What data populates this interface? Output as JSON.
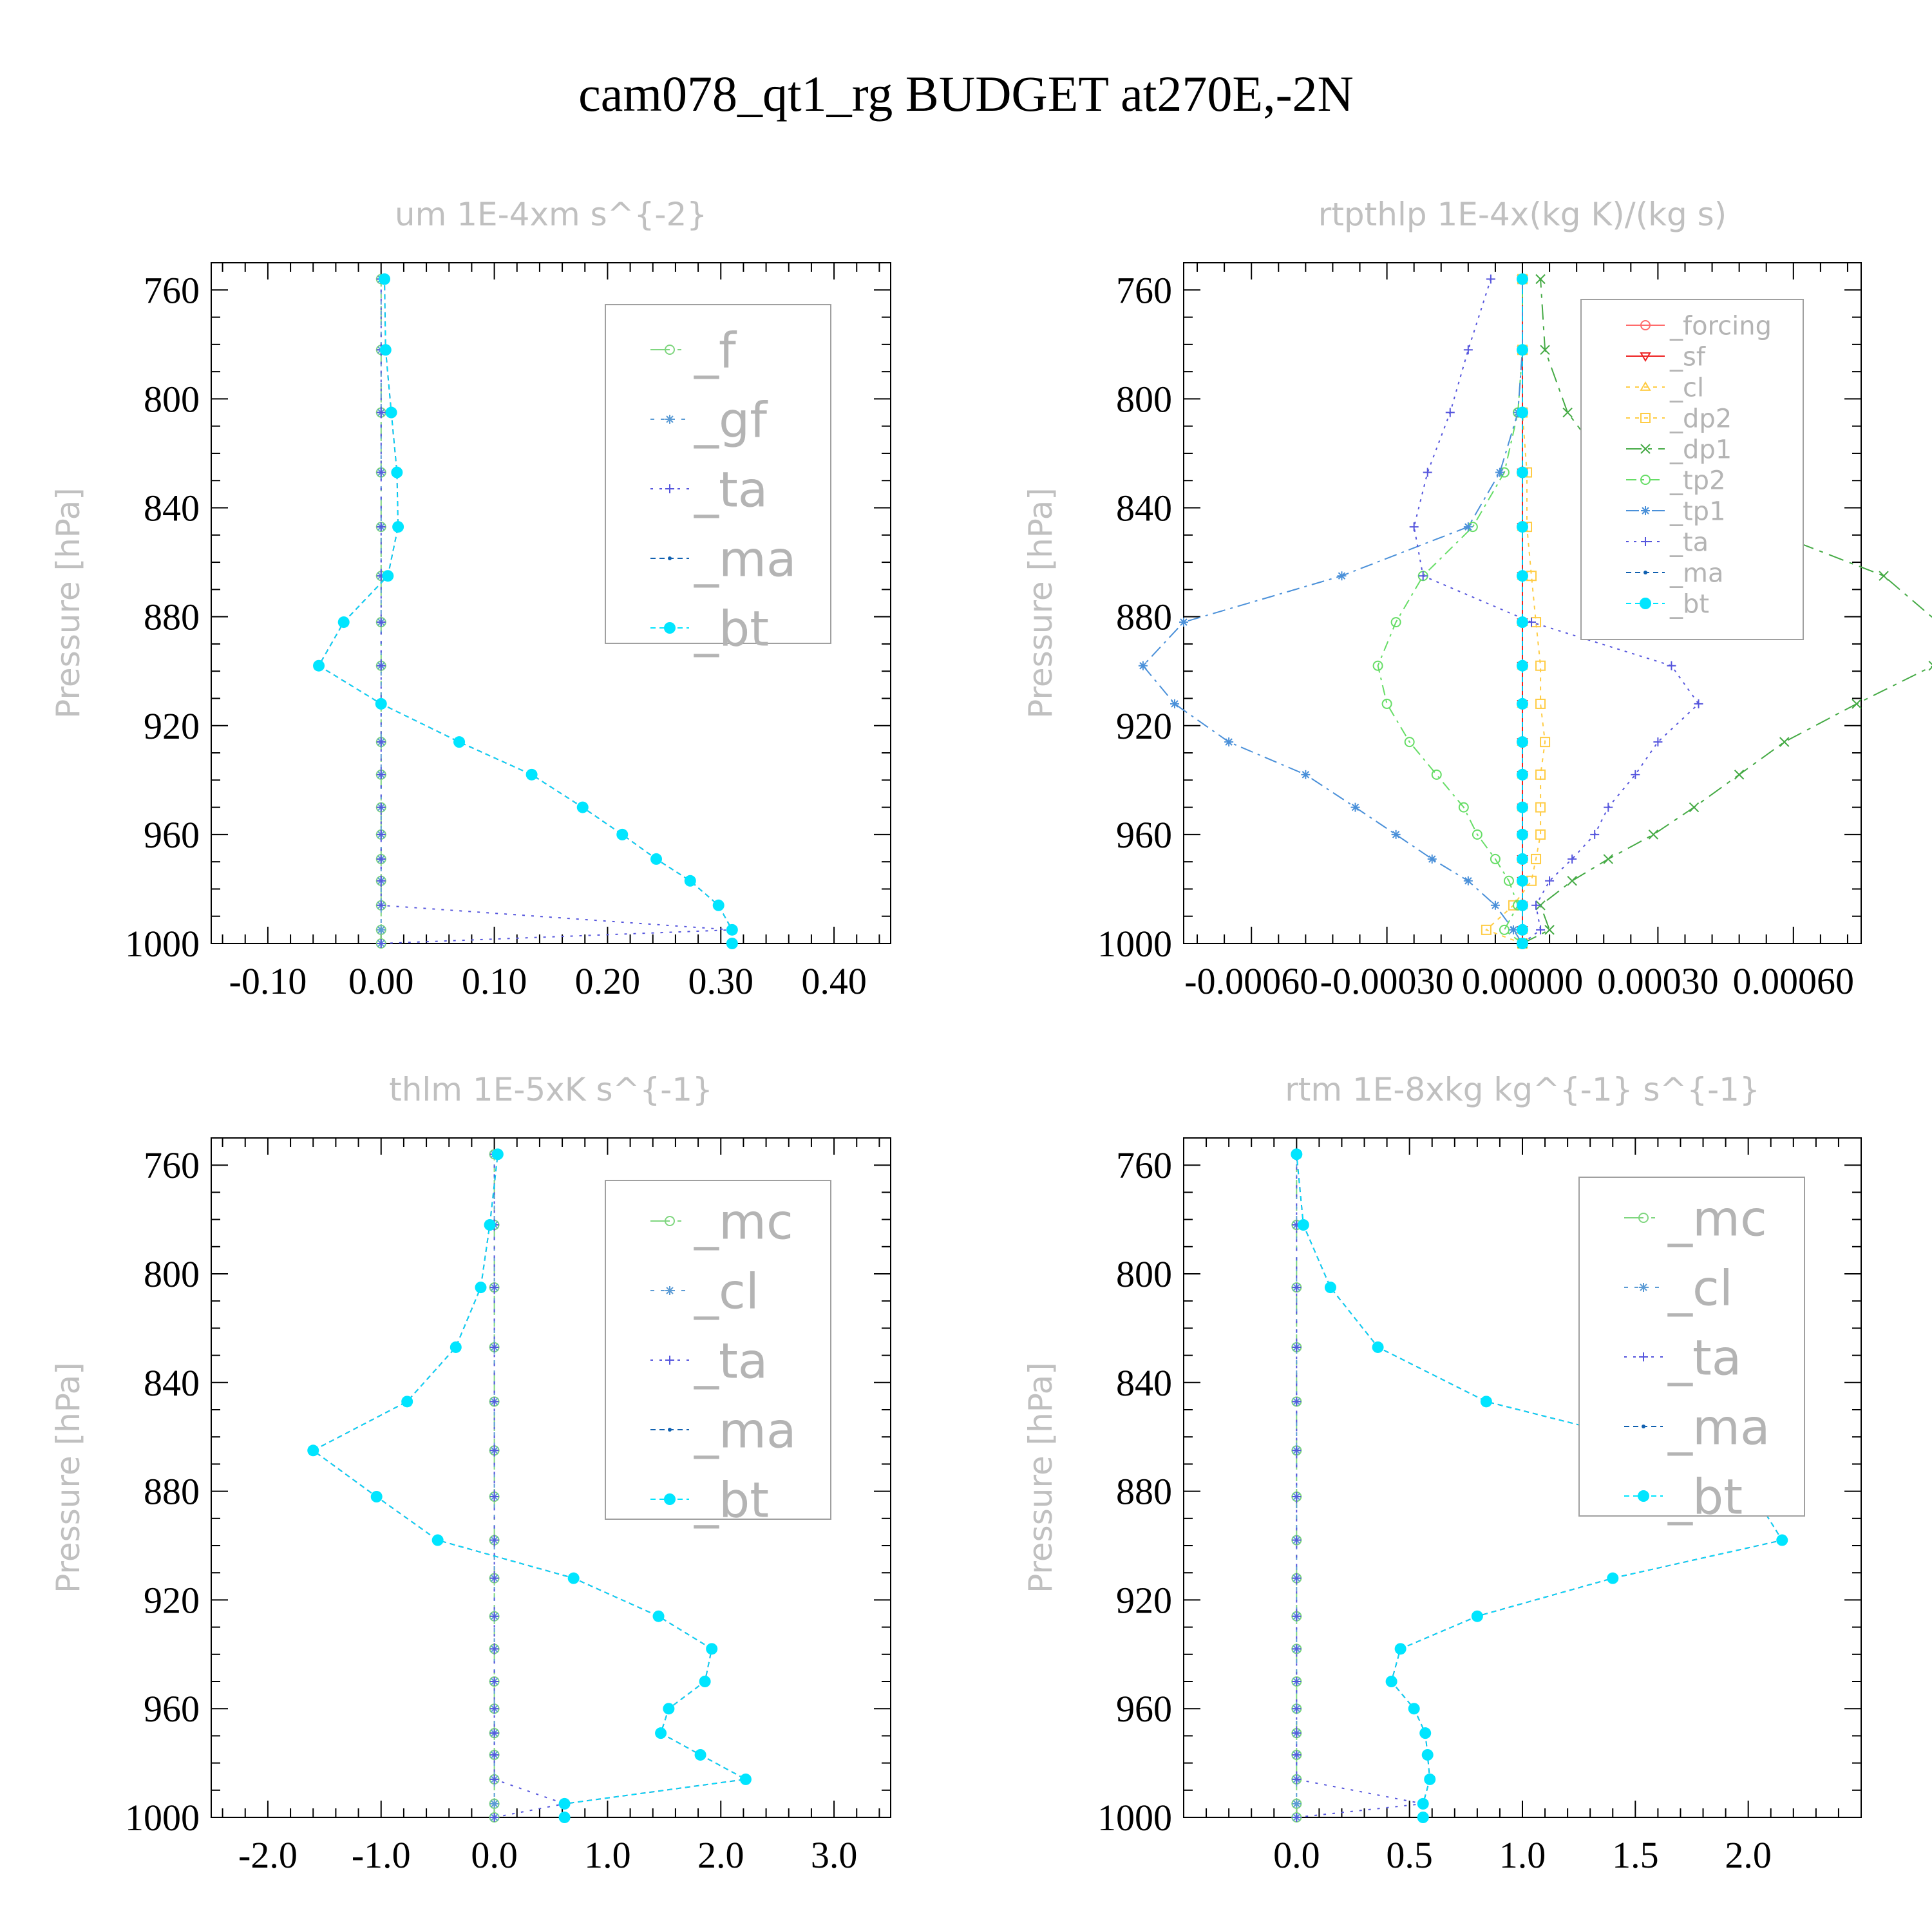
{
  "figure_title": "cam078_qt1_rg  BUDGET at270E,-2N",
  "colors": {
    "f": "#7fd67f",
    "mc": "#7fd67f",
    "gf": "#5b9bd5",
    "cl": "#5b9bd5",
    "ta": "#5555dd",
    "ma": "#1060b0",
    "bt": "#00e5ff",
    "forcing": "#ff6b6b",
    "sf": "#ee2222",
    "dp2": "#ffcc44",
    "dp1": "#44aa44",
    "tp2": "#66dd66",
    "tp1": "#4a90d9"
  },
  "chart_data": [
    {
      "type": "line",
      "title": "um  1E-4xm s^{-2}",
      "ylabel": "Pressure [hPa]",
      "xlim": [
        -0.15,
        0.45
      ],
      "ylim": [
        1000,
        750
      ],
      "xticks": [
        -0.1,
        0.0,
        0.1,
        0.2,
        0.3,
        0.4
      ],
      "xtick_labels": [
        "-0.10",
        "0.00",
        "0.10",
        "0.20",
        "0.30",
        "0.40"
      ],
      "yticks": [
        760,
        800,
        840,
        880,
        920,
        960,
        1000
      ],
      "ytick_labels": [
        "760",
        "800",
        "840",
        "880",
        "920",
        "960",
        "1000"
      ],
      "y": [
        1000,
        995,
        986,
        977,
        969,
        960,
        950,
        938,
        926,
        912,
        898,
        882,
        865,
        847,
        827,
        805,
        782,
        756
      ],
      "legend_position": "top-right",
      "legend_font": 76,
      "series": [
        {
          "name": "_f",
          "key": "f",
          "marker": "circle",
          "dash": "30,12,6,12",
          "values": [
            0,
            0,
            0,
            0,
            0,
            0,
            0,
            0,
            0,
            0,
            0,
            0,
            0,
            0,
            0,
            0,
            0,
            0
          ]
        },
        {
          "name": "_gf",
          "key": "gf",
          "marker": "star",
          "dash": "6,10",
          "values": [
            0,
            0,
            0,
            0,
            0,
            0,
            0,
            0,
            0,
            0,
            0,
            0,
            0,
            0,
            0,
            0,
            0,
            0
          ]
        },
        {
          "name": "_ta",
          "key": "ta",
          "marker": "plus",
          "dash": "4,10",
          "values": [
            0,
            0.31,
            0,
            0,
            0,
            0,
            0,
            0,
            0,
            0,
            0,
            0,
            0,
            0,
            0,
            0,
            0,
            0
          ]
        },
        {
          "name": "_ma",
          "key": "ma",
          "marker": "dot",
          "dash": "8,6",
          "values": [
            0.31,
            0.31,
            0.298,
            0.273,
            0.243,
            0.213,
            0.178,
            0.133,
            0.069,
            0,
            -0.055,
            -0.033,
            0.006,
            0.015,
            0.014,
            0.009,
            0.004,
            0.003
          ]
        },
        {
          "name": "_bt",
          "key": "bt",
          "marker": "bigdot",
          "dash": "8,6",
          "values": [
            0.31,
            0.31,
            0.298,
            0.273,
            0.243,
            0.213,
            0.178,
            0.133,
            0.069,
            0,
            -0.055,
            -0.033,
            0.006,
            0.015,
            0.014,
            0.009,
            0.004,
            0.003
          ]
        }
      ]
    },
    {
      "type": "line",
      "title": "rtpthlp  1E-4x(kg K)/(kg s)",
      "ylabel": "Pressure [hPa]",
      "xlim": [
        -0.00075,
        0.00075
      ],
      "ylim": [
        1000,
        750
      ],
      "xticks": [
        -0.0006,
        -0.0003,
        0.0,
        0.0003,
        0.0006
      ],
      "xtick_labels": [
        "-0.00060",
        "-0.00030",
        "0.00000",
        "0.00030",
        "0.00060"
      ],
      "yticks": [
        760,
        800,
        840,
        880,
        920,
        960,
        1000
      ],
      "ytick_labels": [
        "760",
        "800",
        "840",
        "880",
        "920",
        "960",
        "1000"
      ],
      "y": [
        1000,
        995,
        986,
        977,
        969,
        960,
        950,
        938,
        926,
        912,
        898,
        882,
        865,
        847,
        827,
        805,
        782,
        756
      ],
      "legend_position": "top-right",
      "legend_font": 40,
      "series": [
        {
          "name": "_forcing",
          "key": "forcing",
          "marker": "circle",
          "dash": "",
          "values": [
            0,
            0,
            0,
            0,
            0,
            0,
            0,
            0,
            0,
            0,
            0,
            0,
            0,
            0,
            0,
            0,
            0,
            0
          ]
        },
        {
          "name": "_sf",
          "key": "sf",
          "marker": "tri-down",
          "dash": "",
          "values": [
            0,
            0,
            0,
            0,
            0,
            0,
            0,
            0,
            0,
            0,
            0,
            0,
            0,
            0,
            0,
            0,
            0,
            0
          ]
        },
        {
          "name": "_cl",
          "key": "dp2",
          "marker": "tri-up",
          "dash": "6,8",
          "values": [
            0,
            0,
            0,
            0,
            0,
            0,
            0,
            0,
            0,
            0,
            0,
            0,
            0,
            0,
            0,
            0,
            0,
            0
          ]
        },
        {
          "name": "_dp2",
          "key": "dp2",
          "marker": "square",
          "dash": "6,8",
          "values": [
            0,
            -8e-05,
            -2e-05,
            2e-05,
            3e-05,
            4e-05,
            4e-05,
            4e-05,
            5e-05,
            4e-05,
            4e-05,
            3e-05,
            2e-05,
            1e-05,
            1e-05,
            0,
            0,
            0
          ]
        },
        {
          "name": "_dp1",
          "key": "dp1",
          "marker": "x",
          "dash": "24,10,6,10",
          "values": [
            0,
            6e-05,
            4e-05,
            0.00011,
            0.00019,
            0.00029,
            0.00038,
            0.00048,
            0.00058,
            0.00074,
            0.00091,
            0.00092,
            0.0008,
            0.00052,
            0.0002,
            0.0001,
            5e-05,
            4e-05
          ]
        },
        {
          "name": "_tp2",
          "key": "tp2",
          "marker": "circle",
          "dash": "16,8,4,8",
          "values": [
            0,
            -4e-05,
            -1e-05,
            -3e-05,
            -6e-05,
            -0.0001,
            -0.00013,
            -0.00019,
            -0.00025,
            -0.0003,
            -0.00032,
            -0.00028,
            -0.00022,
            -0.00011,
            -4e-05,
            -1e-05,
            0,
            0
          ]
        },
        {
          "name": "_tp1",
          "key": "tp1",
          "marker": "star",
          "dash": "20,8,4,8",
          "values": [
            0,
            -2e-05,
            -6e-05,
            -0.00012,
            -0.0002,
            -0.00028,
            -0.00037,
            -0.00048,
            -0.00065,
            -0.00077,
            -0.00084,
            -0.00075,
            -0.0004,
            -0.00012,
            -5e-05,
            -1e-05,
            0,
            0
          ]
        },
        {
          "name": "_ta",
          "key": "ta",
          "marker": "plus",
          "dash": "4,8",
          "values": [
            0,
            4e-05,
            3e-05,
            6e-05,
            0.00011,
            0.00016,
            0.00019,
            0.00025,
            0.0003,
            0.00039,
            0.00033,
            2e-05,
            -0.00022,
            -0.00024,
            -0.00021,
            -0.00016,
            -0.00012,
            -7e-05
          ]
        },
        {
          "name": "_ma",
          "key": "ma",
          "marker": "dot",
          "dash": "8,6",
          "values": [
            0,
            0,
            0,
            0,
            0,
            0,
            0,
            0,
            0,
            0,
            0,
            0,
            0,
            0,
            0,
            0,
            0,
            0
          ]
        },
        {
          "name": "_bt",
          "key": "bt",
          "marker": "bigdot",
          "dash": "8,6",
          "values": [
            0,
            0,
            0,
            0,
            0,
            0,
            0,
            0,
            0,
            0,
            0,
            0,
            0,
            0,
            0,
            0,
            0,
            0
          ]
        }
      ]
    },
    {
      "type": "line",
      "title": "thlm  1E-5xK s^{-1}",
      "ylabel": "Pressure [hPa]",
      "xlim": [
        -2.5,
        3.5
      ],
      "ylim": [
        1000,
        750
      ],
      "xticks": [
        -2,
        -1,
        0,
        1,
        2,
        3
      ],
      "xtick_labels": [
        "-2.0",
        "-1.0",
        "0.0",
        "1.0",
        "2.0",
        "3.0"
      ],
      "yticks": [
        760,
        800,
        840,
        880,
        920,
        960,
        1000
      ],
      "ytick_labels": [
        "760",
        "800",
        "840",
        "880",
        "920",
        "960",
        "1000"
      ],
      "y": [
        1000,
        995,
        986,
        977,
        969,
        960,
        950,
        938,
        926,
        912,
        898,
        882,
        865,
        847,
        827,
        805,
        782,
        756
      ],
      "legend_position": "top-right",
      "legend_font": 76,
      "series": [
        {
          "name": "_mc",
          "key": "mc",
          "marker": "circle",
          "dash": "30,12,6,12",
          "values": [
            0,
            0,
            0,
            0,
            0,
            0,
            0,
            0,
            0,
            0,
            0,
            0,
            0,
            0,
            0,
            0,
            0,
            0
          ]
        },
        {
          "name": "_cl",
          "key": "cl",
          "marker": "star",
          "dash": "6,10",
          "values": [
            0,
            0,
            0,
            0,
            0,
            0,
            0,
            0,
            0,
            0,
            0,
            0,
            0,
            0,
            0,
            0,
            0,
            0
          ]
        },
        {
          "name": "_ta",
          "key": "ta",
          "marker": "plus",
          "dash": "4,10",
          "values": [
            0,
            0.62,
            0,
            0,
            0,
            0,
            0,
            0,
            0,
            0,
            0,
            0,
            0,
            0,
            0,
            0,
            0,
            0
          ]
        },
        {
          "name": "_ma",
          "key": "ma",
          "marker": "dot",
          "dash": "8,6",
          "values": [
            0.62,
            0.62,
            2.22,
            1.82,
            1.47,
            1.54,
            1.86,
            1.92,
            1.45,
            0.7,
            -0.5,
            -1.04,
            -1.6,
            -0.77,
            -0.34,
            -0.12,
            -0.04,
            0.03
          ]
        },
        {
          "name": "_bt",
          "key": "bt",
          "marker": "bigdot",
          "dash": "8,6",
          "values": [
            0.62,
            0.62,
            2.22,
            1.82,
            1.47,
            1.54,
            1.86,
            1.92,
            1.45,
            0.7,
            -0.5,
            -1.04,
            -1.6,
            -0.77,
            -0.34,
            -0.12,
            -0.04,
            0.03
          ]
        }
      ]
    },
    {
      "type": "line",
      "title": "rtm  1E-8xkg kg^{-1} s^{-1}",
      "ylabel": "Pressure [hPa]",
      "xlim": [
        -0.5,
        2.5
      ],
      "ylim": [
        1000,
        750
      ],
      "xticks": [
        0,
        0.5,
        1.0,
        1.5,
        2.0
      ],
      "xtick_labels": [
        "0.0",
        "0.5",
        "1.0",
        "1.5",
        "2.0"
      ],
      "yticks": [
        760,
        800,
        840,
        880,
        920,
        960,
        1000
      ],
      "ytick_labels": [
        "760",
        "800",
        "840",
        "880",
        "920",
        "960",
        "1000"
      ],
      "y": [
        1000,
        995,
        986,
        977,
        969,
        960,
        950,
        938,
        926,
        912,
        898,
        882,
        865,
        847,
        827,
        805,
        782,
        756
      ],
      "legend_position": "top-right",
      "legend_font": 76,
      "series": [
        {
          "name": "_mc",
          "key": "mc",
          "marker": "circle",
          "dash": "30,12,6,12",
          "values": [
            0,
            0,
            0,
            0,
            0,
            0,
            0,
            0,
            0,
            0,
            0,
            0,
            0,
            0,
            0,
            0,
            0,
            0
          ]
        },
        {
          "name": "_cl",
          "key": "cl",
          "marker": "star",
          "dash": "6,10",
          "values": [
            0,
            0,
            0,
            0,
            0,
            0,
            0,
            0,
            0,
            0,
            0,
            0,
            0,
            0,
            0,
            0,
            0,
            0
          ]
        },
        {
          "name": "_ta",
          "key": "ta",
          "marker": "plus",
          "dash": "4,10",
          "values": [
            0,
            0.56,
            0,
            0,
            0,
            0,
            0,
            0,
            0,
            0,
            0,
            0,
            0,
            0,
            0,
            0,
            0,
            0
          ]
        },
        {
          "name": "_ma",
          "key": "ma",
          "marker": "dot",
          "dash": "8,6",
          "values": [
            0.56,
            0.56,
            0.59,
            0.58,
            0.57,
            0.52,
            0.42,
            0.46,
            0.8,
            1.4,
            2.15,
            2.03,
            1.7,
            0.84,
            0.36,
            0.15,
            0.03,
            0
          ]
        },
        {
          "name": "_bt",
          "key": "bt",
          "marker": "bigdot",
          "dash": "8,6",
          "values": [
            0.56,
            0.56,
            0.59,
            0.58,
            0.57,
            0.52,
            0.42,
            0.46,
            0.8,
            1.4,
            2.15,
            2.03,
            1.7,
            0.84,
            0.36,
            0.15,
            0.03,
            0
          ]
        }
      ]
    }
  ]
}
